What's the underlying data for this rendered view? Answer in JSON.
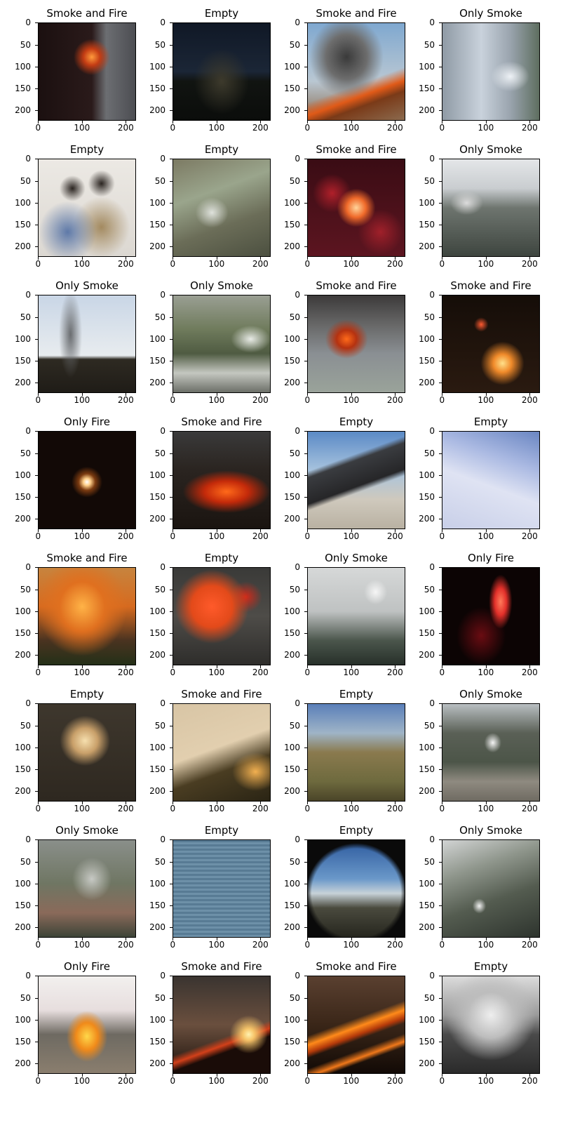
{
  "axis": {
    "yticks": [
      "0",
      "50",
      "100",
      "150",
      "200"
    ],
    "xticks": [
      "0",
      "100",
      "200"
    ]
  },
  "panels": [
    {
      "title": "Smoke and Fire",
      "scene": "night-building-fire"
    },
    {
      "title": "Empty",
      "scene": "night-landscape"
    },
    {
      "title": "Smoke and Fire",
      "scene": "hillside-smoke-fire"
    },
    {
      "title": "Only Smoke",
      "scene": "city-smoke-plume"
    },
    {
      "title": "Empty",
      "scene": "two-people"
    },
    {
      "title": "Empty",
      "scene": "street-cars"
    },
    {
      "title": "Smoke and Fire",
      "scene": "red-interior-fire"
    },
    {
      "title": "Only Smoke",
      "scene": "mountain-smoke"
    },
    {
      "title": "Only Smoke",
      "scene": "field-smoke-column"
    },
    {
      "title": "Only Smoke",
      "scene": "valley-smoke"
    },
    {
      "title": "Smoke and Fire",
      "scene": "building-fire"
    },
    {
      "title": "Smoke and Fire",
      "scene": "night-street-fire"
    },
    {
      "title": "Only Fire",
      "scene": "dark-small-fire"
    },
    {
      "title": "Smoke and Fire",
      "scene": "dark-wildfire"
    },
    {
      "title": "Empty",
      "scene": "construction-site"
    },
    {
      "title": "Empty",
      "scene": "snow-slope"
    },
    {
      "title": "Smoke and Fire",
      "scene": "forest-fire"
    },
    {
      "title": "Empty",
      "scene": "red-ornament"
    },
    {
      "title": "Only Smoke",
      "scene": "hazy-smoke"
    },
    {
      "title": "Only Fire",
      "scene": "night-crowd-fire"
    },
    {
      "title": "Empty",
      "scene": "blurry-light"
    },
    {
      "title": "Smoke and Fire",
      "scene": "blurred-hill-fire"
    },
    {
      "title": "Empty",
      "scene": "hills-daylight"
    },
    {
      "title": "Only Smoke",
      "scene": "city-mountain-smoke"
    },
    {
      "title": "Only Smoke",
      "scene": "village-smoke"
    },
    {
      "title": "Empty",
      "scene": "lamp-window"
    },
    {
      "title": "Empty",
      "scene": "fisheye-mountains"
    },
    {
      "title": "Only Smoke",
      "scene": "mountain-slope-smoke"
    },
    {
      "title": "Only Fire",
      "scene": "ceremony-fire"
    },
    {
      "title": "Smoke and Fire",
      "scene": "sunset-ridge-fire"
    },
    {
      "title": "Smoke and Fire",
      "scene": "line-fire-night"
    },
    {
      "title": "Empty",
      "scene": "grayscale-landscape"
    }
  ]
}
